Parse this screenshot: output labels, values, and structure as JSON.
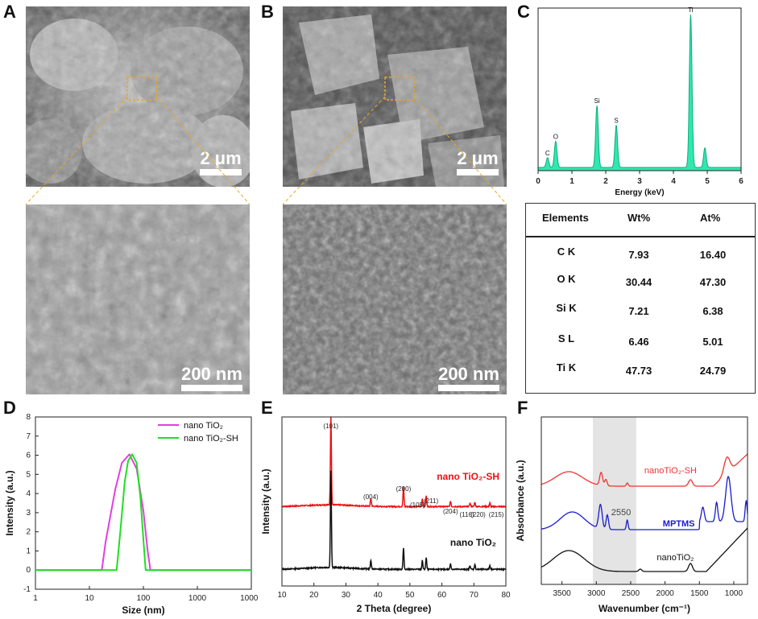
{
  "panels": {
    "A": {
      "letter": "A",
      "scale_top": "2 μm",
      "scale_bottom": "200 nm"
    },
    "B": {
      "letter": "B",
      "scale_top": "2 μm",
      "scale_bottom": "200 nm"
    },
    "C": {
      "letter": "C"
    },
    "D": {
      "letter": "D"
    },
    "E": {
      "letter": "E"
    },
    "F": {
      "letter": "F"
    }
  },
  "eds_table": {
    "headers": [
      "Elements",
      "Wt%",
      "At%"
    ],
    "rows": [
      {
        "element": "C K",
        "wt": "7.93",
        "at": "16.40"
      },
      {
        "element": "O K",
        "wt": "30.44",
        "at": "47.30"
      },
      {
        "element": "Si K",
        "wt": "7.21",
        "at": "6.38"
      },
      {
        "element": "S L",
        "wt": "6.46",
        "at": "5.01"
      },
      {
        "element": "Ti K",
        "wt": "47.73",
        "at": "24.79"
      }
    ]
  },
  "chart_data": [
    {
      "panel": "C",
      "type": "line",
      "xlabel": "Energy (keV)",
      "ylabel": "",
      "xlim": [
        0,
        6
      ],
      "xticks": [
        "0",
        "1",
        "2",
        "3",
        "4",
        "5",
        "6"
      ],
      "color": "#2fe8b0",
      "peaks": [
        {
          "label": "C",
          "x": 0.28,
          "y": 0.06
        },
        {
          "label": "O",
          "x": 0.52,
          "y": 0.16
        },
        {
          "label": "Si",
          "x": 1.74,
          "y": 0.38
        },
        {
          "label": "S",
          "x": 2.31,
          "y": 0.26
        },
        {
          "label": "Ti",
          "x": 4.51,
          "y": 0.94
        },
        {
          "label": "",
          "x": 4.93,
          "y": 0.12
        }
      ]
    },
    {
      "panel": "D",
      "type": "line",
      "xlabel": "Size (nm)",
      "ylabel": "Intensity (a.u.)",
      "xscale": "log",
      "xlim": [
        1,
        10000
      ],
      "ylim": [
        -1,
        8
      ],
      "xticks": [
        "1",
        "10",
        "100",
        "1000",
        "10000"
      ],
      "yticks": [
        "-1",
        "0",
        "1",
        "2",
        "3",
        "4",
        "5",
        "6",
        "7",
        "8"
      ],
      "legend": "top-right",
      "series": [
        {
          "name": "nano TiO₂",
          "color": "#e040e0",
          "x": [
            1,
            17,
            20,
            30,
            40,
            55,
            75,
            100,
            120,
            135,
            10000
          ],
          "y": [
            0,
            0,
            1.5,
            4.2,
            5.6,
            6.05,
            5.3,
            3.1,
            1.0,
            0,
            0
          ]
        },
        {
          "name": "nano TiO₂-SH",
          "color": "#22dd22",
          "x": [
            1,
            32,
            38,
            45,
            52,
            62,
            75,
            88,
            100,
            110,
            10000
          ],
          "y": [
            0,
            0,
            2.2,
            4.6,
            5.7,
            6.05,
            5.6,
            3.8,
            1.6,
            0,
            0
          ]
        }
      ]
    },
    {
      "panel": "E",
      "type": "line",
      "xlabel": "2 Theta (degree)",
      "ylabel": "Intensity (a.u.)",
      "xlim": [
        10,
        80
      ],
      "xticks": [
        "10",
        "20",
        "30",
        "40",
        "50",
        "60",
        "70",
        "80"
      ],
      "annotations": [
        "(101)",
        "(004)",
        "(200)",
        "(105)",
        "(211)",
        "(204)",
        "(116)",
        "(220)",
        "(215)"
      ],
      "series": [
        {
          "name": "nano TiO₂-SH",
          "color": "#ee1111"
        },
        {
          "name": "nano TiO₂",
          "color": "#111111"
        }
      ],
      "peaks_2theta": [
        25.3,
        37.8,
        48.0,
        53.9,
        55.1,
        62.7,
        68.8,
        70.3,
        75.0
      ]
    },
    {
      "panel": "F",
      "type": "line",
      "xlabel": "Wavenumber (cm⁻¹)",
      "ylabel": "Absorbance (a.u.)",
      "xlim": [
        3800,
        800
      ],
      "xticks": [
        "3500",
        "3000",
        "2500",
        "2000",
        "1500",
        "1000"
      ],
      "shaded_region": [
        3050,
        2420
      ],
      "annotation": "2550",
      "series": [
        {
          "name": "nanoTiO₂-SH",
          "color": "#ee3333"
        },
        {
          "name": "MPTMS",
          "color": "#1a1ad0"
        },
        {
          "name": "nanoTiO₂",
          "color": "#111111"
        }
      ]
    }
  ]
}
